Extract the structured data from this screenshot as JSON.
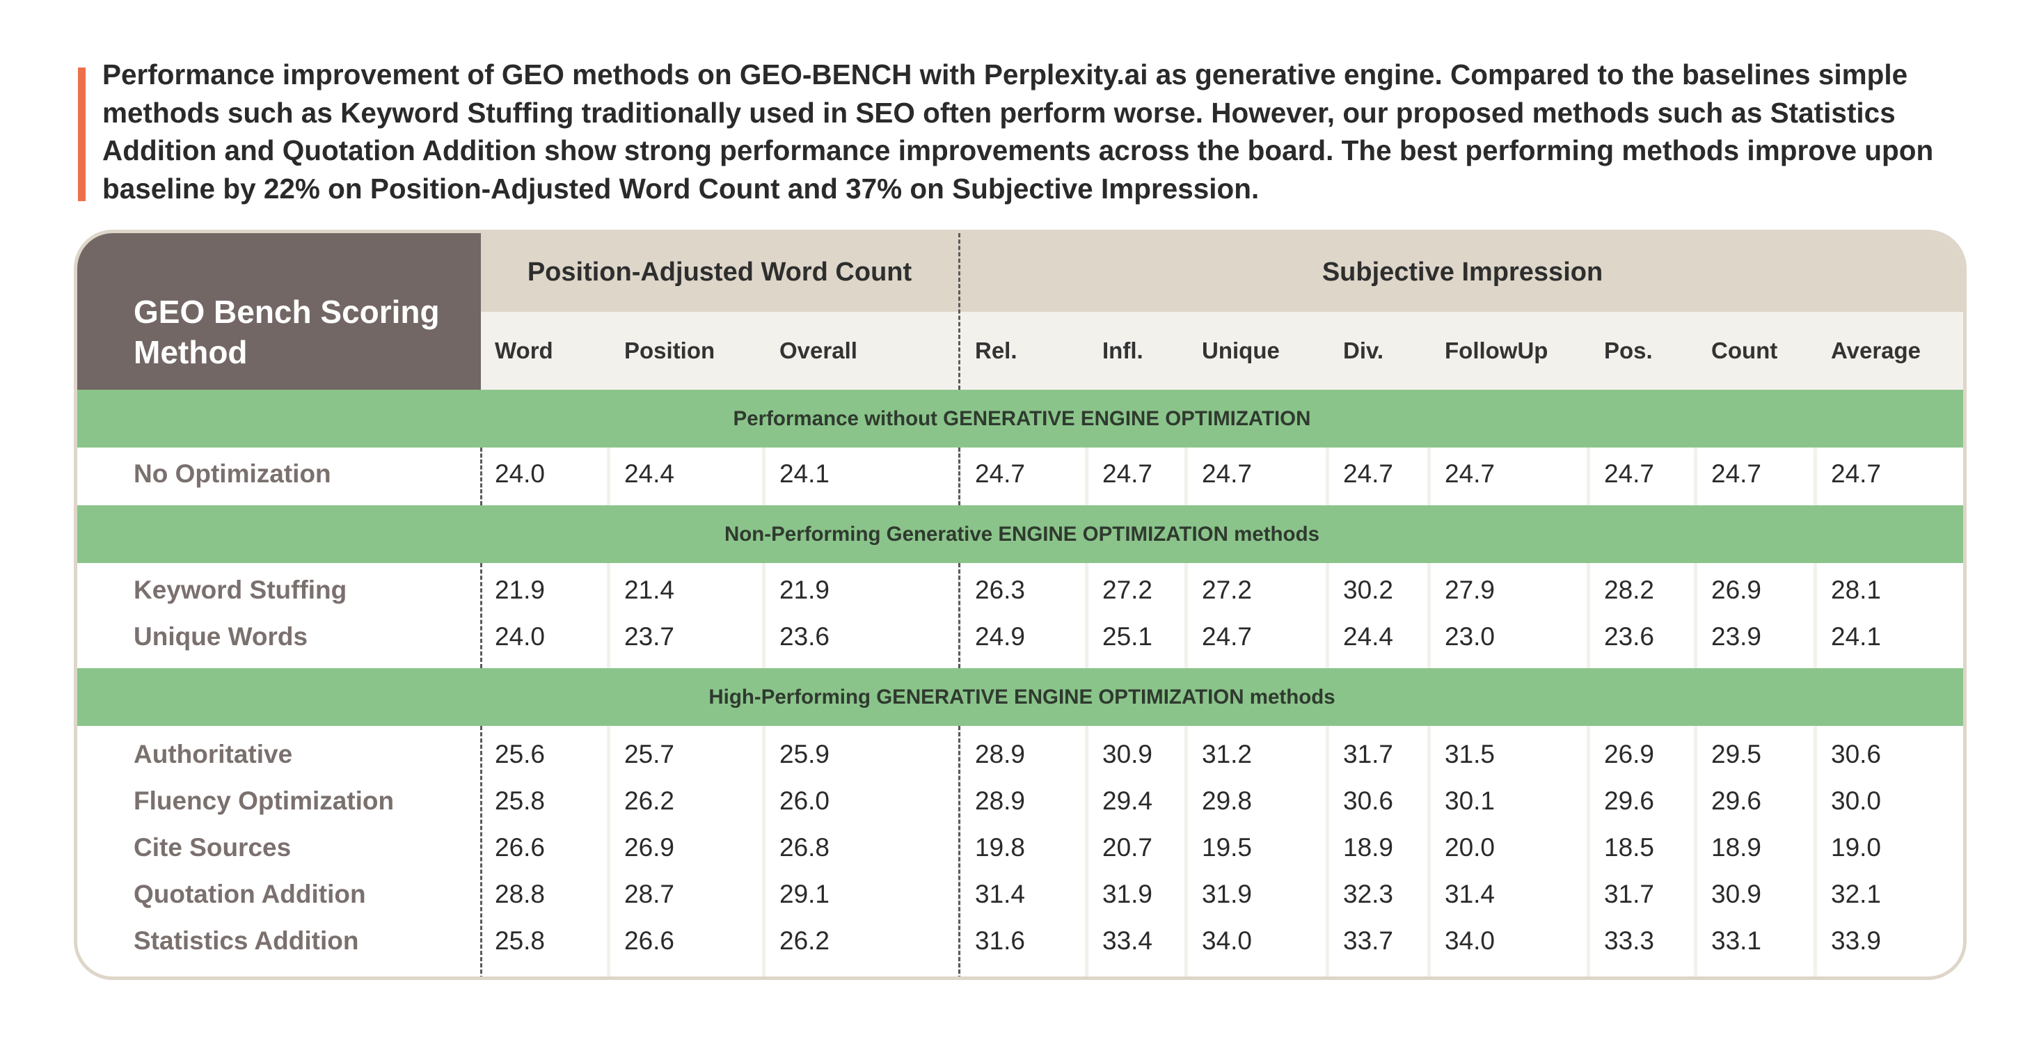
{
  "caption": "Performance improvement of GEO methods on GEO-BENCH with Perplexity.ai as generative engine. Compared to the baselines simple methods such as Keyword Stuffing traditionally used in SEO often perform worse. However, our proposed methods such as Statistics Addition and Quotation Addition show strong performance improvements across the board. The best performing methods improve upon baseline by 22% on Position-Adjusted Word Count and 37% on Subjective Impression.",
  "colors": {
    "accent_bar": "#ee6f4c",
    "corner_header": "#726765",
    "group_header": "#ddd6c9",
    "section_band": "#8bc48b",
    "cell_background": "#ffffff",
    "column_gap": "#f3f1ec"
  },
  "table": {
    "corner_title": "GEO Bench Scoring Method",
    "groups": [
      {
        "label": "Position-Adjusted Word Count"
      },
      {
        "label": "Subjective Impression"
      }
    ],
    "columns": [
      {
        "label": "Word"
      },
      {
        "label": "Position"
      },
      {
        "label": "Overall"
      },
      {
        "label": "Rel."
      },
      {
        "label": "Infl."
      },
      {
        "label": "Unique"
      },
      {
        "label": "Div."
      },
      {
        "label": "FollowUp"
      },
      {
        "label": "Pos."
      },
      {
        "label": "Count"
      },
      {
        "label": "Average"
      }
    ],
    "sections": [
      {
        "title": "Performance without GENERATIVE ENGINE OPTIMIZATION",
        "rows": [
          {
            "method": "No Optimization",
            "values": [
              "24.0",
              "24.4",
              "24.1",
              "24.7",
              "24.7",
              "24.7",
              "24.7",
              "24.7",
              "24.7",
              "24.7",
              "24.7"
            ]
          }
        ]
      },
      {
        "title": "Non-Performing Generative ENGINE OPTIMIZATION methods",
        "rows": [
          {
            "method": "Keyword Stuffing",
            "values": [
              "21.9",
              "21.4",
              "21.9",
              "26.3",
              "27.2",
              "27.2",
              "30.2",
              "27.9",
              "28.2",
              "26.9",
              "28.1"
            ]
          },
          {
            "method": "Unique Words",
            "values": [
              "24.0",
              "23.7",
              "23.6",
              "24.9",
              "25.1",
              "24.7",
              "24.4",
              "23.0",
              "23.6",
              "23.9",
              "24.1"
            ]
          }
        ]
      },
      {
        "title": "High-Performing GENERATIVE ENGINE OPTIMIZATION methods",
        "rows": [
          {
            "method": "Authoritative",
            "values": [
              "25.6",
              "25.7",
              "25.9",
              "28.9",
              "30.9",
              "31.2",
              "31.7",
              "31.5",
              "26.9",
              "29.5",
              "30.6"
            ]
          },
          {
            "method": "Fluency Optimization",
            "values": [
              "25.8",
              "26.2",
              "26.0",
              "28.9",
              "29.4",
              "29.8",
              "30.6",
              "30.1",
              "29.6",
              "29.6",
              "30.0"
            ]
          },
          {
            "method": "Cite Sources",
            "values": [
              "26.6",
              "26.9",
              "26.8",
              "19.8",
              "20.7",
              "19.5",
              "18.9",
              "20.0",
              "18.5",
              "18.9",
              "19.0"
            ]
          },
          {
            "method": "Quotation Addition",
            "values": [
              "28.8",
              "28.7",
              "29.1",
              "31.4",
              "31.9",
              "31.9",
              "32.3",
              "31.4",
              "31.7",
              "30.9",
              "32.1"
            ]
          },
          {
            "method": "Statistics Addition",
            "values": [
              "25.8",
              "26.6",
              "26.2",
              "31.6",
              "33.4",
              "34.0",
              "33.7",
              "34.0",
              "33.3",
              "33.1",
              "33.9"
            ]
          }
        ]
      }
    ]
  }
}
